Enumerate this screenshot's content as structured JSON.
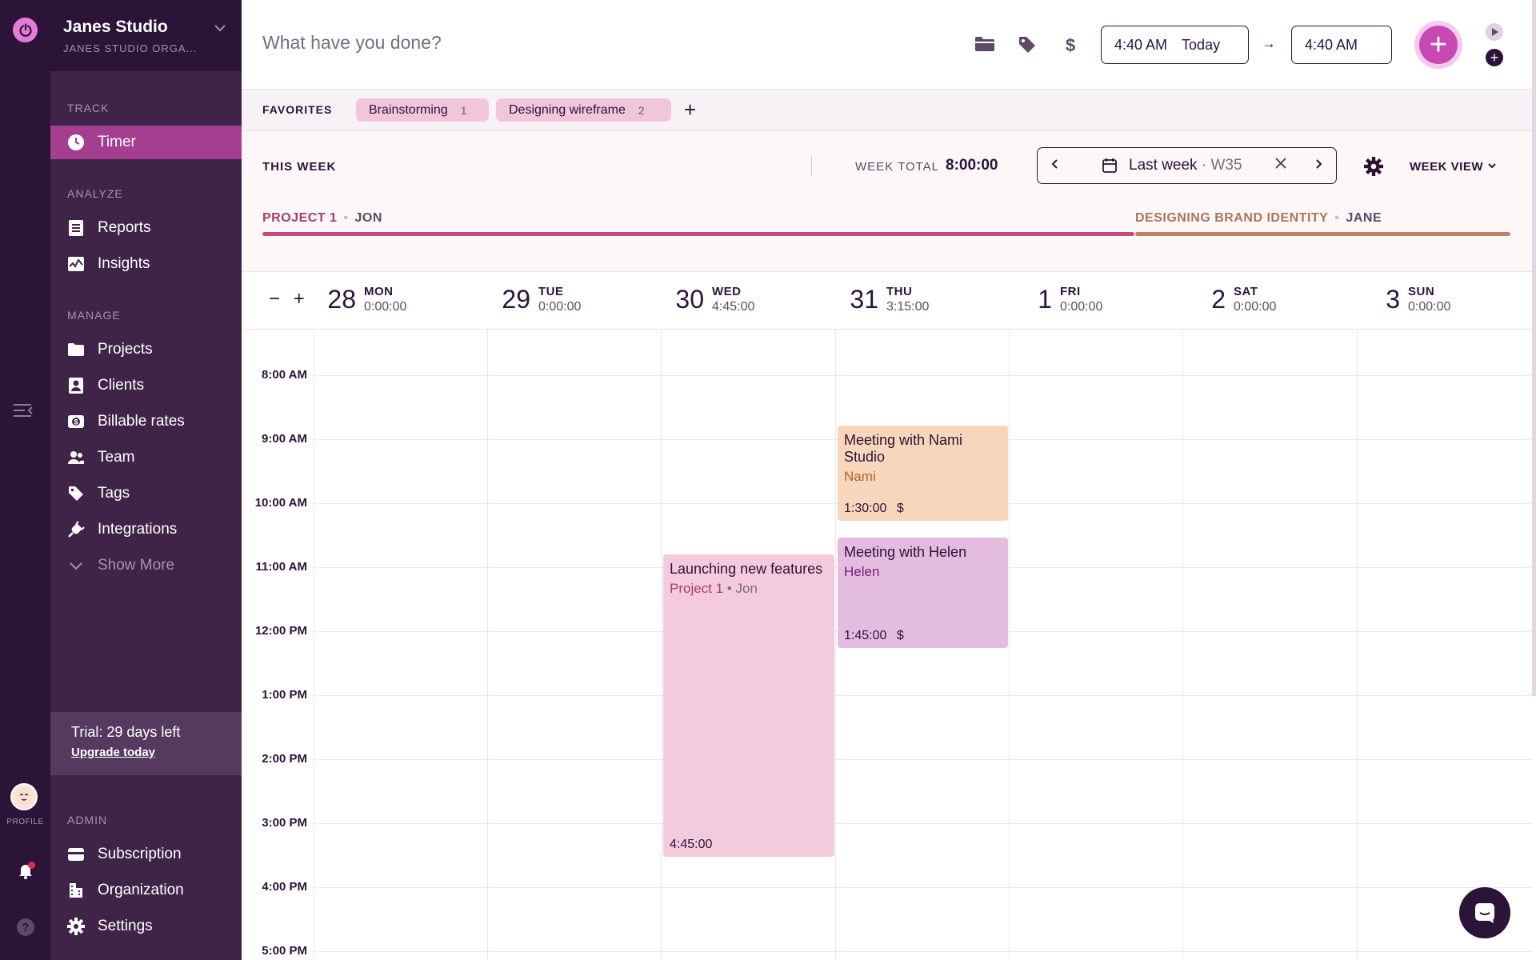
{
  "workspace": {
    "name": "Janes Studio",
    "org": "JANES STUDIO ORGA..."
  },
  "rail": {
    "profile_label": "PROFILE",
    "help": "?"
  },
  "sidebar": {
    "track_label": "TRACK",
    "analyze_label": "ANALYZE",
    "manage_label": "MANAGE",
    "admin_label": "ADMIN",
    "items": {
      "timer": "Timer",
      "reports": "Reports",
      "insights": "Insights",
      "projects": "Projects",
      "clients": "Clients",
      "billable_rates": "Billable rates",
      "team": "Team",
      "tags": "Tags",
      "integrations": "Integrations",
      "show_more": "Show More",
      "subscription": "Subscription",
      "organization": "Organization",
      "settings": "Settings"
    },
    "trial": {
      "text": "Trial: 29 days left",
      "link": "Upgrade today"
    }
  },
  "topbar": {
    "placeholder": "What have you done?",
    "start_time": "4:40 AM",
    "start_day": "Today",
    "arrow": "→",
    "end_time": "4:40 AM"
  },
  "favorites": {
    "label": "FAVORITES",
    "chips": [
      {
        "name": "Brainstorming",
        "count": "1"
      },
      {
        "name": "Designing wireframe",
        "count": "2"
      }
    ],
    "add": "+"
  },
  "week": {
    "this_week": "THIS WEEK",
    "total_label": "WEEK TOTAL",
    "total": "8:00:00",
    "period": "Last week",
    "period_sep": " · ",
    "week_num": "W35",
    "view": "WEEK VIEW",
    "projects": [
      {
        "name": "PROJECT 1",
        "member": "JON",
        "color": "#c64a85"
      },
      {
        "name": "DESIGNING BRAND IDENTITY",
        "member": "JANE",
        "color": "#c38064"
      }
    ]
  },
  "calendar": {
    "zoom_out": "−",
    "zoom_in": "+",
    "days": [
      {
        "num": "28",
        "name": "MON",
        "total": "0:00:00"
      },
      {
        "num": "29",
        "name": "TUE",
        "total": "0:00:00"
      },
      {
        "num": "30",
        "name": "WED",
        "total": "4:45:00"
      },
      {
        "num": "31",
        "name": "THU",
        "total": "3:15:00"
      },
      {
        "num": "1",
        "name": "FRI",
        "total": "0:00:00"
      },
      {
        "num": "2",
        "name": "SAT",
        "total": "0:00:00"
      },
      {
        "num": "3",
        "name": "SUN",
        "total": "0:00:00"
      }
    ],
    "hours": [
      "8:00 AM",
      "9:00 AM",
      "10:00 AM",
      "11:00 AM",
      "12:00 PM",
      "1:00 PM",
      "2:00 PM",
      "3:00 PM",
      "4:00 PM",
      "5:00 PM"
    ],
    "entries": [
      {
        "title": "Launching new features",
        "project": "Project 1",
        "member": "Jon",
        "duration": "4:45:00",
        "color": "#f3cbdc",
        "text_color": "#b2386e"
      },
      {
        "title": "Meeting with Nami Studio",
        "project": "Nami",
        "duration": "1:30:00",
        "billable": "$",
        "color": "#f7d6bc",
        "text_color": "#b36224"
      },
      {
        "title": "Meeting with Helen",
        "project": "Helen",
        "duration": "1:45:00",
        "billable": "$",
        "color": "#e4bcdf",
        "text_color": "#7c1b7a"
      }
    ]
  }
}
